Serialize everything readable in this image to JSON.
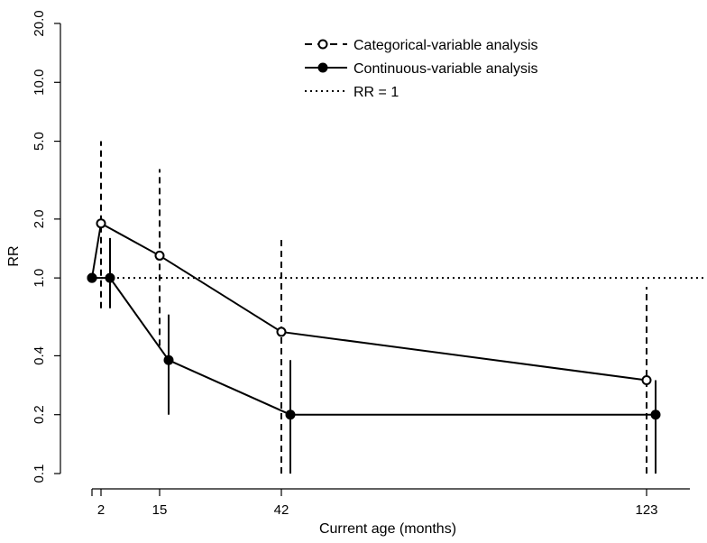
{
  "chart_data": {
    "type": "scatter",
    "xlabel": "Current age (months)",
    "ylabel": "RR",
    "y_scale": "log",
    "ylim": [
      0.1,
      20.0
    ],
    "y_ticks": [
      "0.1",
      "0.2",
      "0.4",
      "1.0",
      "2.0",
      "5.0",
      "10.0",
      "20.0"
    ],
    "x_ticks": [
      "2",
      "15",
      "42",
      "123"
    ],
    "legend_position": "top-right",
    "reference_line": {
      "label": "RR = 1",
      "y": 1.0,
      "style": "dotted"
    },
    "series": [
      {
        "name": "Categorical-variable analysis",
        "marker": "open-circle",
        "line_style": "solid",
        "ci_style": "dashed",
        "points": [
          {
            "x": 0,
            "y": 1.0,
            "ci": null
          },
          {
            "x": 2,
            "y": 1.9,
            "ci": [
              0.7,
              5.0
            ]
          },
          {
            "x": 15,
            "y": 1.3,
            "ci": [
              0.45,
              3.6
            ]
          },
          {
            "x": 42,
            "y": 0.53,
            "ci": [
              0.1,
              1.6
            ]
          },
          {
            "x": 123,
            "y": 0.3,
            "ci": [
              0.1,
              0.9
            ]
          }
        ]
      },
      {
        "name": "Continuous-variable analysis",
        "marker": "filled-circle",
        "line_style": "solid",
        "ci_style": "solid",
        "points": [
          {
            "x": 0,
            "y": 1.0,
            "ci": null
          },
          {
            "x": 4,
            "y": 1.0,
            "ci": [
              0.7,
              1.6
            ]
          },
          {
            "x": 17,
            "y": 0.38,
            "ci": [
              0.2,
              0.65
            ]
          },
          {
            "x": 44,
            "y": 0.2,
            "ci": [
              0.1,
              0.38
            ]
          },
          {
            "x": 125,
            "y": 0.2,
            "ci": [
              0.1,
              0.3
            ]
          }
        ]
      }
    ]
  },
  "colors": {
    "ink": "#000000",
    "background": "#ffffff"
  }
}
